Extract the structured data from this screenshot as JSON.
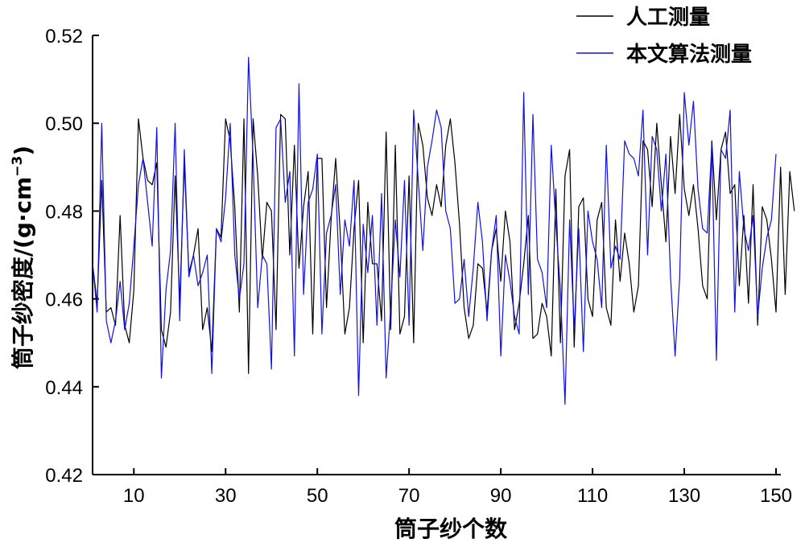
{
  "chart_data": {
    "type": "line",
    "xlabel": "筒子纱个数",
    "ylabel": "筒子纱密度/(g·cm",
    "ylabel_sup": "−3",
    "ylabel_close": ")",
    "xlim": [
      1,
      150
    ],
    "ylim": [
      0.42,
      0.52
    ],
    "x_ticks": [
      10,
      30,
      50,
      70,
      90,
      110,
      130,
      150
    ],
    "x_tick_labels": [
      "10",
      "30",
      "50",
      "70",
      "90",
      "110",
      "130",
      "150"
    ],
    "y_ticks": [
      0.42,
      0.44,
      0.46,
      0.48,
      0.5,
      0.52
    ],
    "y_tick_labels": [
      "0.42",
      "0.44",
      "0.46",
      "0.48",
      "0.50",
      "0.52"
    ],
    "legend_position": "top-right",
    "series": [
      {
        "name": "人工测量",
        "color": "#000000",
        "values": [
          0.468,
          0.459,
          0.487,
          0.457,
          0.458,
          0.454,
          0.479,
          0.454,
          0.45,
          0.462,
          0.501,
          0.492,
          0.487,
          0.486,
          0.491,
          0.453,
          0.449,
          0.457,
          0.488,
          0.459,
          0.491,
          0.466,
          0.47,
          0.476,
          0.453,
          0.458,
          0.448,
          0.476,
          0.474,
          0.501,
          0.496,
          0.481,
          0.457,
          0.501,
          0.443,
          0.501,
          0.488,
          0.469,
          0.482,
          0.48,
          0.453,
          0.502,
          0.501,
          0.47,
          0.495,
          0.467,
          0.481,
          0.489,
          0.452,
          0.492,
          0.492,
          0.458,
          0.478,
          0.492,
          0.475,
          0.452,
          0.458,
          0.476,
          0.487,
          0.45,
          0.482,
          0.468,
          0.468,
          0.455,
          0.498,
          0.453,
          0.495,
          0.452,
          0.456,
          0.488,
          0.45,
          0.5,
          0.495,
          0.483,
          0.479,
          0.486,
          0.481,
          0.495,
          0.501,
          0.491,
          0.477,
          0.458,
          0.451,
          0.454,
          0.468,
          0.467,
          0.457,
          0.471,
          0.476,
          0.464,
          0.48,
          0.473,
          0.453,
          0.459,
          0.468,
          0.479,
          0.451,
          0.452,
          0.459,
          0.456,
          0.447,
          0.485,
          0.45,
          0.488,
          0.494,
          0.449,
          0.481,
          0.483,
          0.46,
          0.456,
          0.478,
          0.482,
          0.458,
          0.454,
          0.478,
          0.464,
          0.475,
          0.468,
          0.457,
          0.463,
          0.496,
          0.494,
          0.481,
          0.5,
          0.486,
          0.473,
          0.497,
          0.484,
          0.502,
          0.485,
          0.479,
          0.486,
          0.476,
          0.463,
          0.46,
          0.496,
          0.478,
          0.494,
          0.498,
          0.484,
          0.486,
          0.463,
          0.479,
          0.459,
          0.486,
          0.454,
          0.481,
          0.478,
          0.469,
          0.457,
          0.49,
          0.461,
          0.489,
          0.48
        ]
      },
      {
        "name": "本文算法测量",
        "color": "#1010e0",
        "values": [
          0.468,
          0.457,
          0.5,
          0.455,
          0.45,
          0.455,
          0.464,
          0.453,
          0.459,
          0.472,
          0.486,
          0.492,
          0.482,
          0.472,
          0.499,
          0.442,
          0.462,
          0.471,
          0.5,
          0.455,
          0.494,
          0.465,
          0.47,
          0.463,
          0.466,
          0.47,
          0.443,
          0.476,
          0.473,
          0.483,
          0.5,
          0.47,
          0.46,
          0.468,
          0.515,
          0.492,
          0.458,
          0.47,
          0.468,
          0.444,
          0.499,
          0.501,
          0.482,
          0.489,
          0.447,
          0.509,
          0.461,
          0.482,
          0.485,
          0.493,
          0.452,
          0.475,
          0.479,
          0.486,
          0.461,
          0.478,
          0.472,
          0.487,
          0.438,
          0.477,
          0.466,
          0.479,
          0.454,
          0.484,
          0.442,
          0.458,
          0.478,
          0.465,
          0.487,
          0.454,
          0.503,
          0.487,
          0.471,
          0.49,
          0.496,
          0.503,
          0.499,
          0.48,
          0.476,
          0.459,
          0.46,
          0.469,
          0.456,
          0.467,
          0.482,
          0.473,
          0.455,
          0.471,
          0.479,
          0.447,
          0.47,
          0.464,
          0.456,
          0.452,
          0.507,
          0.461,
          0.502,
          0.469,
          0.466,
          0.458,
          0.495,
          0.477,
          0.462,
          0.436,
          0.478,
          0.453,
          0.476,
          0.448,
          0.48,
          0.473,
          0.469,
          0.458,
          0.495,
          0.467,
          0.472,
          0.469,
          0.496,
          0.493,
          0.492,
          0.488,
          0.503,
          0.47,
          0.497,
          0.494,
          0.48,
          0.493,
          0.465,
          0.447,
          0.465,
          0.507,
          0.495,
          0.505,
          0.485,
          0.476,
          0.475,
          0.495,
          0.446,
          0.494,
          0.492,
          0.503,
          0.457,
          0.489,
          0.476,
          0.471,
          0.479,
          0.456,
          0.467,
          0.474,
          0.478,
          0.493
        ]
      }
    ]
  }
}
